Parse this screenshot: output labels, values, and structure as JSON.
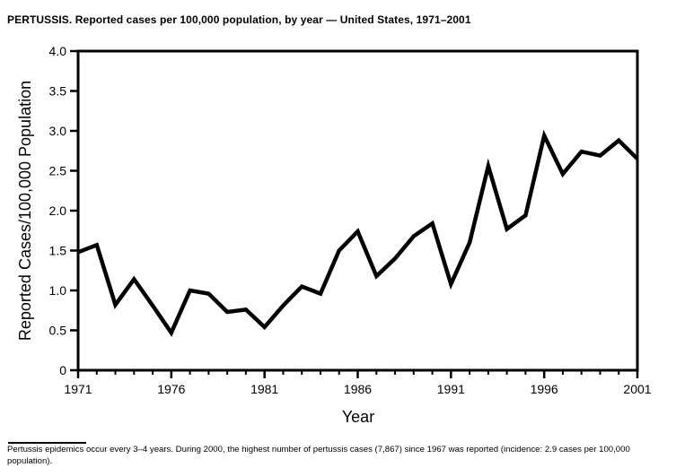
{
  "header": {
    "title": "PERTUSSIS. Reported cases per 100,000 population, by year — United States, 1971–2001"
  },
  "chart_data": {
    "type": "line",
    "title": "PERTUSSIS. Reported cases per 100,000 population, by year — United States, 1971–2001",
    "xlabel": "Year",
    "ylabel": "Reported Cases/100,000 Population",
    "series_name": "Reported pertussis cases per 100,000 population",
    "x": [
      1971,
      1972,
      1973,
      1974,
      1975,
      1976,
      1977,
      1978,
      1979,
      1980,
      1981,
      1982,
      1983,
      1984,
      1985,
      1986,
      1987,
      1988,
      1989,
      1990,
      1991,
      1992,
      1993,
      1994,
      1995,
      1996,
      1997,
      1998,
      1999,
      2000,
      2001
    ],
    "values": [
      1.48,
      1.57,
      0.82,
      1.14,
      0.81,
      0.47,
      1.0,
      0.96,
      0.73,
      0.76,
      0.54,
      0.81,
      1.05,
      0.96,
      1.5,
      1.74,
      1.18,
      1.4,
      1.68,
      1.84,
      1.08,
      1.6,
      2.56,
      1.77,
      1.94,
      2.94,
      2.46,
      2.74,
      2.69,
      2.88,
      2.65
    ],
    "xlim": [
      1971,
      2001
    ],
    "ylim": [
      0,
      4.0
    ],
    "xticks_major": [
      1971,
      1976,
      1981,
      1986,
      1991,
      1996,
      2001
    ],
    "xtick_labels": [
      "1971",
      "1976",
      "1981",
      "1986",
      "1991",
      "1996",
      "2001"
    ],
    "xticks_minor_every": 1,
    "yticks": [
      0,
      0.5,
      1.0,
      1.5,
      2.0,
      2.5,
      3.0,
      3.5,
      4.0
    ],
    "ytick_labels": [
      "0",
      "0.5",
      "1.0",
      "1.5",
      "2.0",
      "2.5",
      "3.0",
      "3.5",
      "4.0"
    ],
    "grid": false,
    "legend": "none",
    "line_color": "#000000",
    "background": "#ffffff"
  },
  "footnote": {
    "text": "Pertussis epidemics occur every 3–4 years. During 2000, the highest number of pertussis cases (7,867) since 1967 was reported (incidence: 2.9 cases per 100,000 population)."
  }
}
